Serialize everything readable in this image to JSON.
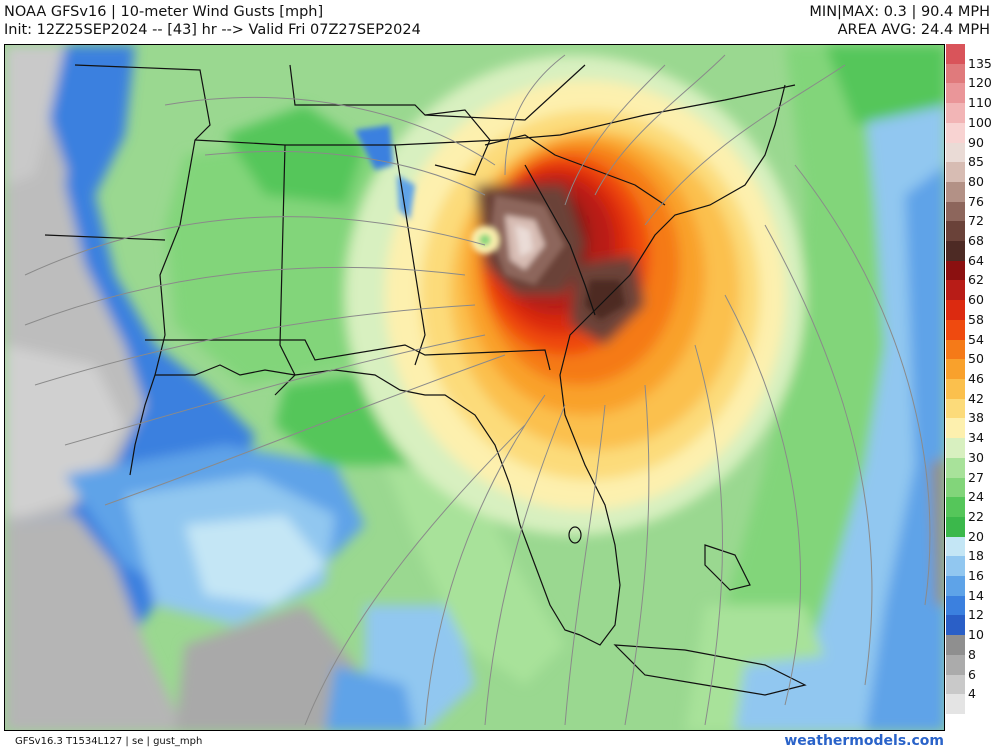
{
  "header": {
    "title": "NOAA GFSv16 | 10-meter Wind Gusts [mph]",
    "init": "Init: 12Z25SEP2024 -- [43] hr --> Valid Fri 07Z27SEP2024",
    "minmax": "MIN|MAX: 0.3 | 90.4 MPH",
    "area_avg": "AREA AVG: 24.4 MPH"
  },
  "footer": {
    "model_info": "GFSv16.3 T1534L127 | se | gust_mph",
    "brand": "weathermodels.com"
  },
  "map": {
    "region": "Southeastern United States and Gulf of Mexico",
    "feature": "hurricane wind field centered near Georgia / South Carolina"
  },
  "legend": {
    "levels": [
      {
        "label": "135",
        "color": "#d9545a"
      },
      {
        "label": "120",
        "color": "#e07a7c"
      },
      {
        "label": "110",
        "color": "#ea9699"
      },
      {
        "label": "100",
        "color": "#f2b5b6"
      },
      {
        "label": "90",
        "color": "#f8d3d2"
      },
      {
        "label": "85",
        "color": "#eadbd6"
      },
      {
        "label": "80",
        "color": "#d7bcb3"
      },
      {
        "label": "76",
        "color": "#b39186"
      },
      {
        "label": "72",
        "color": "#8d665c"
      },
      {
        "label": "68",
        "color": "#6a4239"
      },
      {
        "label": "64",
        "color": "#4d2a24"
      },
      {
        "label": "62",
        "color": "#8b1010"
      },
      {
        "label": "60",
        "color": "#b81c17"
      },
      {
        "label": "58",
        "color": "#dc2a10"
      },
      {
        "label": "54",
        "color": "#ef4a0f"
      },
      {
        "label": "50",
        "color": "#f57a18"
      },
      {
        "label": "46",
        "color": "#f9a12c"
      },
      {
        "label": "42",
        "color": "#fbc04d"
      },
      {
        "label": "38",
        "color": "#fcdb7a"
      },
      {
        "label": "34",
        "color": "#fdf0ae"
      },
      {
        "label": "30",
        "color": "#d8f0c0"
      },
      {
        "label": "27",
        "color": "#a8e29a"
      },
      {
        "label": "24",
        "color": "#82d57a"
      },
      {
        "label": "22",
        "color": "#55c65a"
      },
      {
        "label": "20",
        "color": "#3bb84b"
      },
      {
        "label": "18",
        "color": "#c4e6f5"
      },
      {
        "label": "16",
        "color": "#91c7f0"
      },
      {
        "label": "14",
        "color": "#5ea3e8"
      },
      {
        "label": "12",
        "color": "#3b80df"
      },
      {
        "label": "10",
        "color": "#2a5fc7"
      },
      {
        "label": "8",
        "color": "#8f8f8f"
      },
      {
        "label": "6",
        "color": "#ababab"
      },
      {
        "label": "4",
        "color": "#c9c9c9"
      },
      {
        "label": "",
        "color": "#e4e4e4"
      }
    ]
  }
}
